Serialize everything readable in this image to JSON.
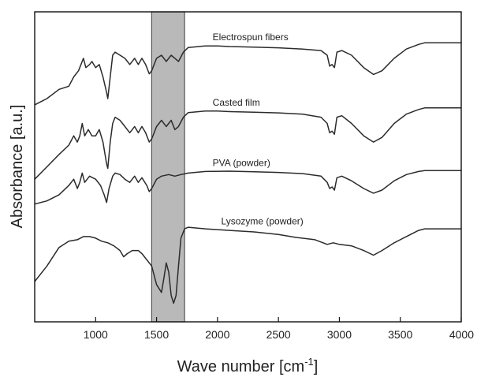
{
  "chart_data": {
    "type": "line",
    "xlabel": "Wave number [cm",
    "xlabel_sup": "-1",
    "xlabel_close": "]",
    "ylabel": "Absorbance [a.u.]",
    "xlim": [
      500,
      4000
    ],
    "ylim": [
      0,
      10
    ],
    "xticks": [
      1000,
      1500,
      2000,
      2500,
      3000,
      3500,
      4000
    ],
    "grid": false,
    "y_tick_labels_shown": false,
    "highlight_band": {
      "x": [
        1460,
        1730
      ],
      "color": "#b9b9b9"
    },
    "series": [
      {
        "name": "Electrospun fibers",
        "label_at": 1960,
        "points": [
          [
            500,
            7.0
          ],
          [
            600,
            7.2
          ],
          [
            700,
            7.5
          ],
          [
            780,
            7.6
          ],
          [
            820,
            7.9
          ],
          [
            860,
            8.1
          ],
          [
            880,
            8.3
          ],
          [
            900,
            8.5
          ],
          [
            920,
            8.2
          ],
          [
            950,
            8.3
          ],
          [
            970,
            8.4
          ],
          [
            1000,
            8.2
          ],
          [
            1030,
            8.3
          ],
          [
            1060,
            7.9
          ],
          [
            1090,
            7.4
          ],
          [
            1100,
            7.2
          ],
          [
            1120,
            7.9
          ],
          [
            1140,
            8.6
          ],
          [
            1160,
            8.7
          ],
          [
            1200,
            8.6
          ],
          [
            1240,
            8.5
          ],
          [
            1280,
            8.3
          ],
          [
            1320,
            8.5
          ],
          [
            1350,
            8.3
          ],
          [
            1380,
            8.5
          ],
          [
            1410,
            8.3
          ],
          [
            1440,
            8.0
          ],
          [
            1460,
            8.1
          ],
          [
            1500,
            8.5
          ],
          [
            1540,
            8.6
          ],
          [
            1580,
            8.4
          ],
          [
            1620,
            8.6
          ],
          [
            1650,
            8.5
          ],
          [
            1680,
            8.4
          ],
          [
            1720,
            8.7
          ],
          [
            1760,
            8.85
          ],
          [
            1900,
            8.9
          ],
          [
            2000,
            8.9
          ],
          [
            2100,
            8.88
          ],
          [
            2300,
            8.86
          ],
          [
            2500,
            8.84
          ],
          [
            2700,
            8.8
          ],
          [
            2850,
            8.75
          ],
          [
            2900,
            8.6
          ],
          [
            2920,
            8.25
          ],
          [
            2940,
            8.3
          ],
          [
            2960,
            8.2
          ],
          [
            2980,
            8.7
          ],
          [
            3020,
            8.75
          ],
          [
            3100,
            8.6
          ],
          [
            3200,
            8.2
          ],
          [
            3280,
            7.98
          ],
          [
            3350,
            8.1
          ],
          [
            3450,
            8.5
          ],
          [
            3550,
            8.8
          ],
          [
            3650,
            8.95
          ],
          [
            3700,
            9.0
          ],
          [
            4000,
            9.0
          ]
        ]
      },
      {
        "name": "Casted film",
        "label_at": 1960,
        "points": [
          [
            500,
            4.6
          ],
          [
            600,
            5.0
          ],
          [
            700,
            5.4
          ],
          [
            780,
            5.7
          ],
          [
            820,
            6.0
          ],
          [
            850,
            5.8
          ],
          [
            870,
            6.0
          ],
          [
            890,
            6.4
          ],
          [
            910,
            6.0
          ],
          [
            940,
            6.2
          ],
          [
            970,
            6.0
          ],
          [
            1000,
            6.0
          ],
          [
            1030,
            6.2
          ],
          [
            1060,
            5.8
          ],
          [
            1090,
            5.1
          ],
          [
            1100,
            4.95
          ],
          [
            1120,
            5.8
          ],
          [
            1140,
            6.4
          ],
          [
            1160,
            6.6
          ],
          [
            1200,
            6.5
          ],
          [
            1240,
            6.3
          ],
          [
            1280,
            6.1
          ],
          [
            1320,
            6.3
          ],
          [
            1350,
            6.1
          ],
          [
            1380,
            6.3
          ],
          [
            1410,
            6.1
          ],
          [
            1440,
            5.8
          ],
          [
            1460,
            5.9
          ],
          [
            1500,
            6.3
          ],
          [
            1540,
            6.5
          ],
          [
            1580,
            6.3
          ],
          [
            1620,
            6.5
          ],
          [
            1650,
            6.2
          ],
          [
            1680,
            6.3
          ],
          [
            1720,
            6.6
          ],
          [
            1760,
            6.75
          ],
          [
            1900,
            6.8
          ],
          [
            2000,
            6.8
          ],
          [
            2100,
            6.78
          ],
          [
            2300,
            6.76
          ],
          [
            2500,
            6.74
          ],
          [
            2700,
            6.7
          ],
          [
            2850,
            6.6
          ],
          [
            2900,
            6.4
          ],
          [
            2920,
            6.1
          ],
          [
            2940,
            6.15
          ],
          [
            2960,
            6.05
          ],
          [
            2980,
            6.6
          ],
          [
            3020,
            6.65
          ],
          [
            3100,
            6.4
          ],
          [
            3200,
            6.0
          ],
          [
            3280,
            5.8
          ],
          [
            3350,
            5.95
          ],
          [
            3450,
            6.4
          ],
          [
            3550,
            6.7
          ],
          [
            3650,
            6.85
          ],
          [
            3700,
            6.9
          ],
          [
            4000,
            6.9
          ]
        ]
      },
      {
        "name": "PVA (powder)",
        "label_at": 1960,
        "points": [
          [
            500,
            3.8
          ],
          [
            600,
            3.9
          ],
          [
            700,
            4.1
          ],
          [
            780,
            4.4
          ],
          [
            820,
            4.6
          ],
          [
            850,
            4.3
          ],
          [
            870,
            4.5
          ],
          [
            890,
            4.8
          ],
          [
            910,
            4.5
          ],
          [
            950,
            4.7
          ],
          [
            1000,
            4.6
          ],
          [
            1040,
            4.4
          ],
          [
            1070,
            4.1
          ],
          [
            1090,
            3.85
          ],
          [
            1110,
            4.3
          ],
          [
            1140,
            4.7
          ],
          [
            1160,
            4.8
          ],
          [
            1200,
            4.75
          ],
          [
            1240,
            4.6
          ],
          [
            1280,
            4.5
          ],
          [
            1320,
            4.7
          ],
          [
            1350,
            4.5
          ],
          [
            1380,
            4.65
          ],
          [
            1420,
            4.4
          ],
          [
            1440,
            4.2
          ],
          [
            1460,
            4.3
          ],
          [
            1500,
            4.6
          ],
          [
            1540,
            4.7
          ],
          [
            1600,
            4.75
          ],
          [
            1650,
            4.7
          ],
          [
            1700,
            4.75
          ],
          [
            1760,
            4.8
          ],
          [
            1900,
            4.85
          ],
          [
            2100,
            4.86
          ],
          [
            2300,
            4.84
          ],
          [
            2500,
            4.82
          ],
          [
            2700,
            4.78
          ],
          [
            2850,
            4.7
          ],
          [
            2900,
            4.5
          ],
          [
            2920,
            4.3
          ],
          [
            2940,
            4.35
          ],
          [
            2960,
            4.25
          ],
          [
            2980,
            4.65
          ],
          [
            3020,
            4.7
          ],
          [
            3100,
            4.55
          ],
          [
            3200,
            4.3
          ],
          [
            3280,
            4.15
          ],
          [
            3350,
            4.25
          ],
          [
            3450,
            4.55
          ],
          [
            3550,
            4.75
          ],
          [
            3650,
            4.85
          ],
          [
            3700,
            4.88
          ],
          [
            4000,
            4.88
          ]
        ]
      },
      {
        "name": "Lysozyme (powder)",
        "label_at": 2030,
        "points": [
          [
            500,
            1.3
          ],
          [
            600,
            1.8
          ],
          [
            700,
            2.4
          ],
          [
            780,
            2.6
          ],
          [
            850,
            2.65
          ],
          [
            900,
            2.75
          ],
          [
            950,
            2.75
          ],
          [
            1000,
            2.7
          ],
          [
            1050,
            2.6
          ],
          [
            1100,
            2.55
          ],
          [
            1150,
            2.45
          ],
          [
            1200,
            2.3
          ],
          [
            1230,
            2.1
          ],
          [
            1260,
            2.2
          ],
          [
            1300,
            2.3
          ],
          [
            1350,
            2.3
          ],
          [
            1380,
            2.2
          ],
          [
            1420,
            2.0
          ],
          [
            1460,
            1.8
          ],
          [
            1500,
            1.2
          ],
          [
            1540,
            0.95
          ],
          [
            1560,
            1.4
          ],
          [
            1580,
            1.9
          ],
          [
            1600,
            1.6
          ],
          [
            1620,
            0.85
          ],
          [
            1640,
            0.6
          ],
          [
            1660,
            0.85
          ],
          [
            1680,
            1.8
          ],
          [
            1700,
            2.7
          ],
          [
            1730,
            3.0
          ],
          [
            1760,
            3.05
          ],
          [
            1900,
            3.0
          ],
          [
            2100,
            2.95
          ],
          [
            2300,
            2.9
          ],
          [
            2500,
            2.82
          ],
          [
            2650,
            2.72
          ],
          [
            2800,
            2.65
          ],
          [
            2900,
            2.5
          ],
          [
            2950,
            2.55
          ],
          [
            3000,
            2.5
          ],
          [
            3100,
            2.45
          ],
          [
            3200,
            2.3
          ],
          [
            3280,
            2.15
          ],
          [
            3350,
            2.3
          ],
          [
            3450,
            2.55
          ],
          [
            3550,
            2.75
          ],
          [
            3650,
            2.95
          ],
          [
            3700,
            3.0
          ],
          [
            4000,
            3.0
          ]
        ]
      }
    ]
  }
}
